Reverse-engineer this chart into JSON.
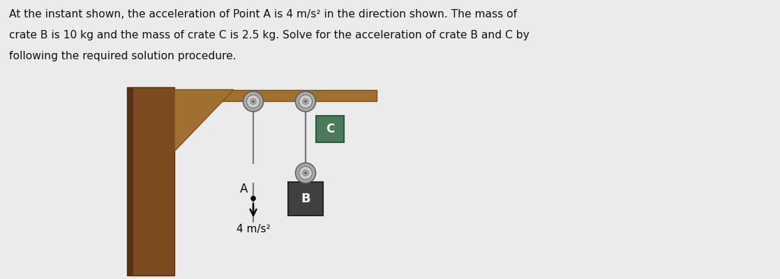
{
  "bg_color": "#ebebeb",
  "wall_color": "#7B4A1E",
  "wall_shadow": "#5a3010",
  "beam_color": "#A07030",
  "beam_edge": "#7a5020",
  "crate_B_color": "#404040",
  "crate_B_edge": "#252525",
  "crate_C_color": "#4a7a5a",
  "crate_C_edge": "#2a5a3a",
  "pulley_outer": "#aaaaaa",
  "pulley_mid": "#cccccc",
  "pulley_inner": "#999999",
  "rope_color": "#7a7a7a",
  "pin_color": "#888888",
  "text_color": "#111111",
  "fig_width": 11.18,
  "fig_height": 4.0,
  "dpi": 100,
  "lines": [
    "At the instant shown, the acceleration of Point A is 4 m/s² in the direction shown. The mass of",
    "crate B is 10 kg and the mass of crate C is 2.5 kg. Solve for the acceleration of crate B and C by",
    "following the required solution procedure."
  ]
}
